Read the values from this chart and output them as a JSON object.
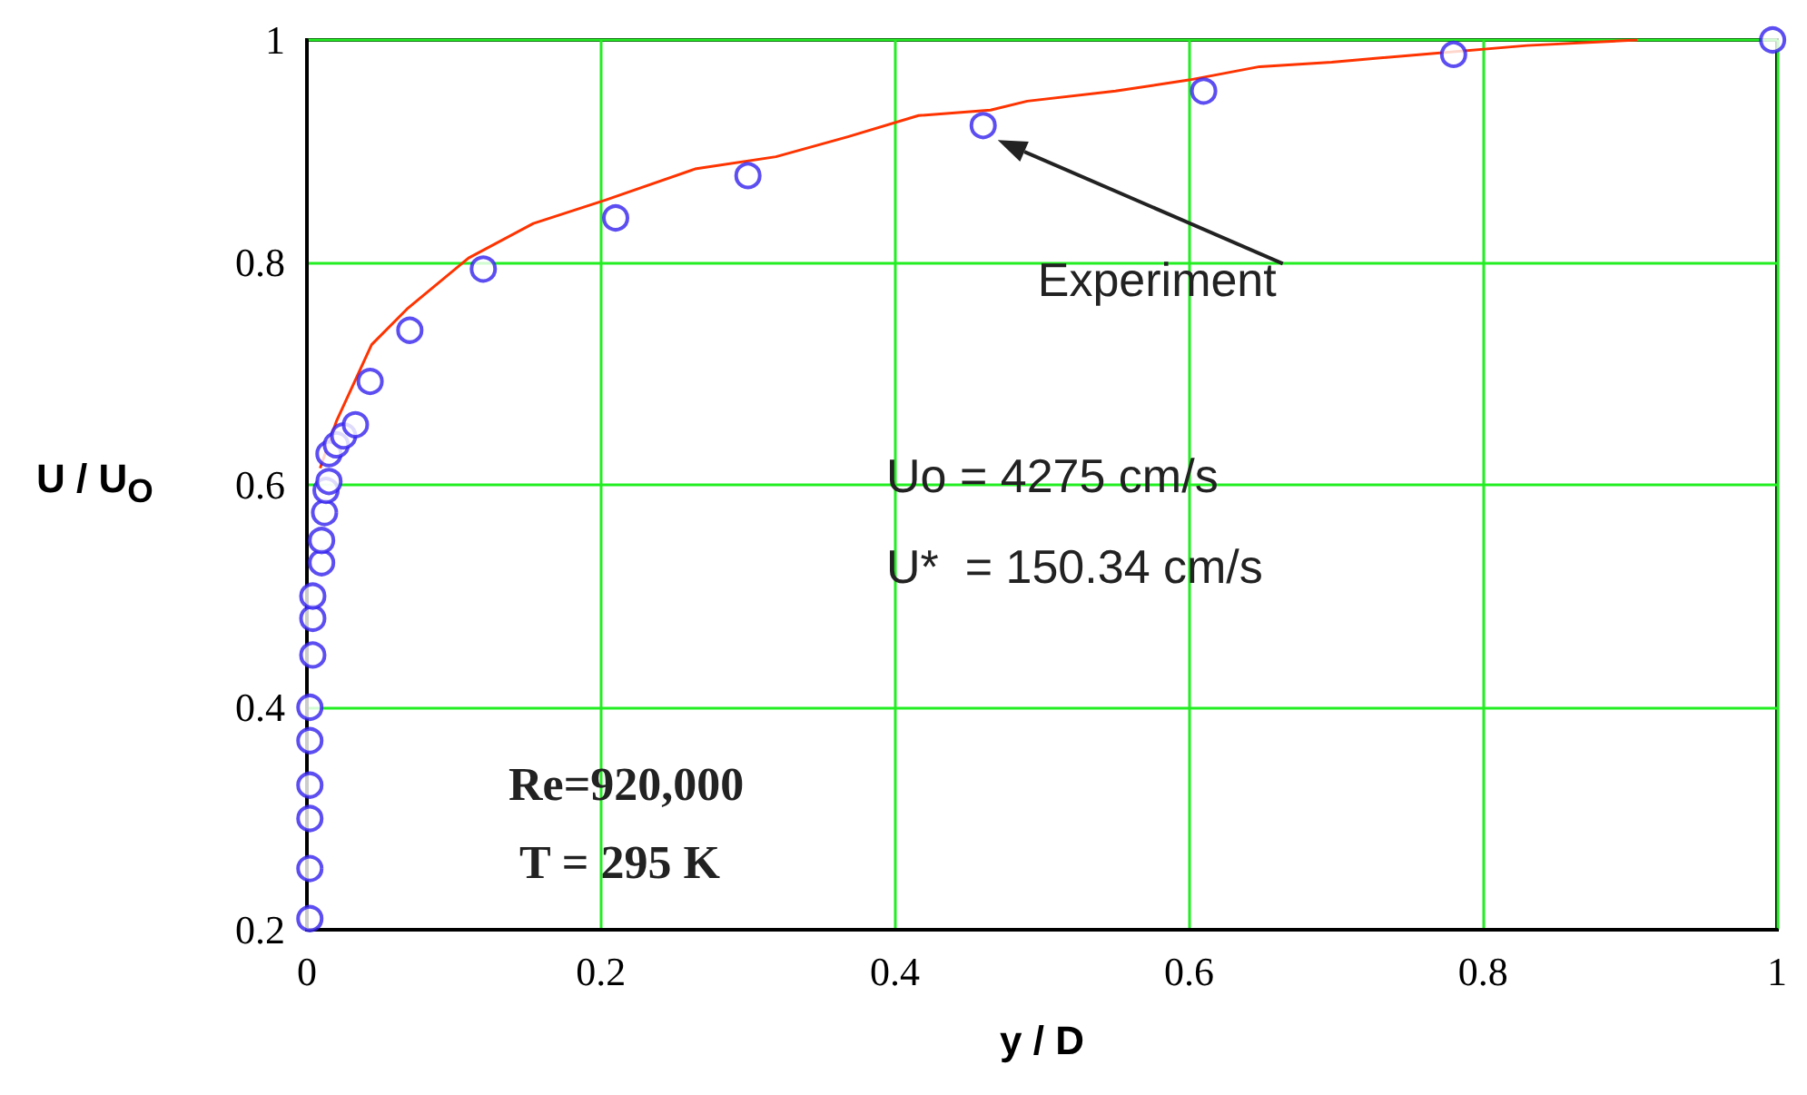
{
  "chart_data": {
    "type": "scatter",
    "xlabel": "y / D",
    "ylabel": "U / U$_{O}$",
    "xlim": [
      0,
      1
    ],
    "ylim": [
      0.2,
      1
    ],
    "xticks": [
      0,
      0.2,
      0.4,
      0.6,
      0.8,
      1
    ],
    "yticks": [
      0.2,
      0.4,
      0.6,
      0.8,
      1
    ],
    "grid": true,
    "series": [
      {
        "type": "line",
        "color": "#ff3300",
        "marker": "none",
        "line_style": "solid",
        "x": [
          0.009,
          0.02,
          0.044,
          0.068,
          0.11,
          0.154,
          0.203,
          0.264,
          0.319,
          0.368,
          0.416,
          0.465,
          0.49,
          0.55,
          0.6,
          0.648,
          0.697,
          0.758,
          0.83,
          0.905
        ],
        "values": [
          0.615,
          0.657,
          0.726,
          0.758,
          0.804,
          0.835,
          0.856,
          0.884,
          0.895,
          0.913,
          0.932,
          0.937,
          0.945,
          0.954,
          0.964,
          0.976,
          0.98,
          0.987,
          0.995,
          1
        ]
      },
      {
        "color": "#3322ee",
        "marker": "circle",
        "x": [
          0.002,
          0.002,
          0.002,
          0.002,
          0.002,
          0.002,
          0.004,
          0.004,
          0.004,
          0.01,
          0.01,
          0.012,
          0.013,
          0.015,
          0.015,
          0.02,
          0.025,
          0.033,
          0.043,
          0.07,
          0.12,
          0.21,
          0.3,
          0.46,
          0.61,
          0.78,
          0.997
        ],
        "values": [
          0.21,
          0.255,
          0.3,
          0.33,
          0.37,
          0.4,
          0.447,
          0.48,
          0.5,
          0.53,
          0.55,
          0.575,
          0.595,
          0.603,
          0.628,
          0.636,
          0.644,
          0.654,
          0.693,
          0.739,
          0.794,
          0.84,
          0.878,
          0.923,
          0.954,
          0.987,
          1
        ]
      }
    ],
    "annotations": [
      {
        "text": "Experiment",
        "x": 0.46,
        "y": 0.923
      },
      "Uo = 4275 cm/s",
      "U*  = 150.34 cm/s",
      "Re=920,000",
      "T = 295 K"
    ]
  }
}
